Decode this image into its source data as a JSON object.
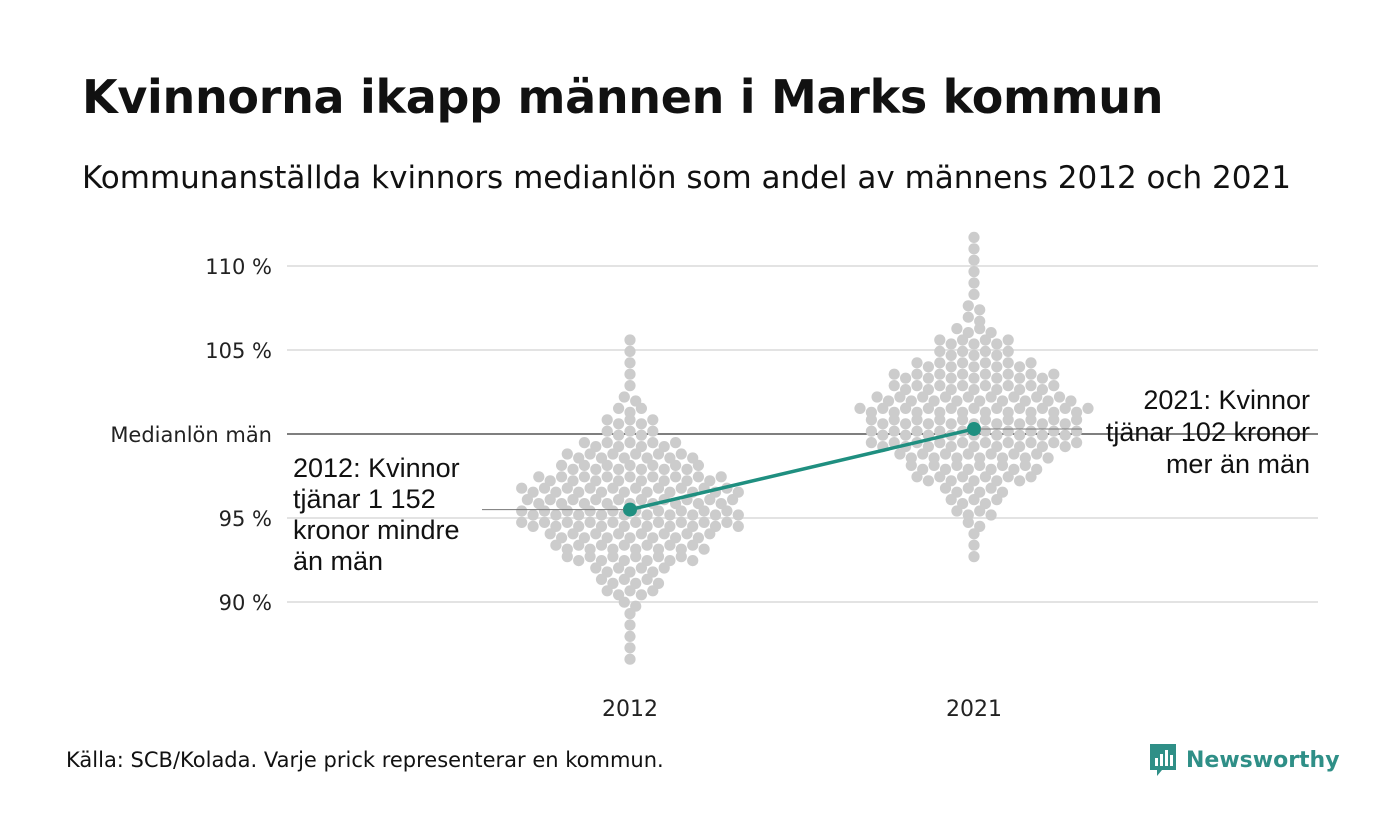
{
  "title": "Kvinnorna ikapp männen i Marks kommun",
  "subtitle": "Kommunanställda kvinnors medianlön som andel av männens 2012 och 2021",
  "source": "Källa: SCB/Kolada. Varje prick representerar en kommun.",
  "brand": {
    "name": "Newsworthy",
    "logo_icon": "bar-chart-bubble-icon",
    "color": "#2f8f87"
  },
  "chart_data": {
    "type": "scatter",
    "subtype": "beeswarm",
    "title": "",
    "xlabel": "",
    "ylabel": "",
    "categories": [
      "2012",
      "2021"
    ],
    "y_unit": "percent",
    "ylim": [
      85.5,
      111.5
    ],
    "yticks": [
      {
        "value": 90,
        "label": "90 %"
      },
      {
        "value": 95,
        "label": "95 %"
      },
      {
        "value": 100,
        "label": "Medianlön män"
      },
      {
        "value": 105,
        "label": "105 %"
      },
      {
        "value": 110,
        "label": "110 %"
      }
    ],
    "reference_line": {
      "value": 100,
      "label": "Medianlön män"
    },
    "grid": true,
    "swarm_color": "#cccccc",
    "highlight_color": "#1f8f80",
    "distribution": {
      "2012": {
        "min": 86.5,
        "max": 105.2,
        "q1": 93.9,
        "median": 95.7,
        "q3": 97.7
      },
      "2021": {
        "min": 92.6,
        "max": 111.4,
        "q1": 98.9,
        "median": 100.9,
        "q3": 102.9
      }
    },
    "highlight": {
      "name": "Marks kommun",
      "points": [
        {
          "x": "2012",
          "y": 95.5
        },
        {
          "x": "2021",
          "y": 100.3
        }
      ]
    },
    "annotations": [
      {
        "x": "2012",
        "lines": [
          "2012: Kvinnor",
          "tjänar 1 152",
          "kronor mindre",
          "än män"
        ]
      },
      {
        "x": "2021",
        "lines": [
          "2021: Kvinnor",
          "tjänar 102 kronor",
          "mer än män"
        ]
      }
    ]
  }
}
